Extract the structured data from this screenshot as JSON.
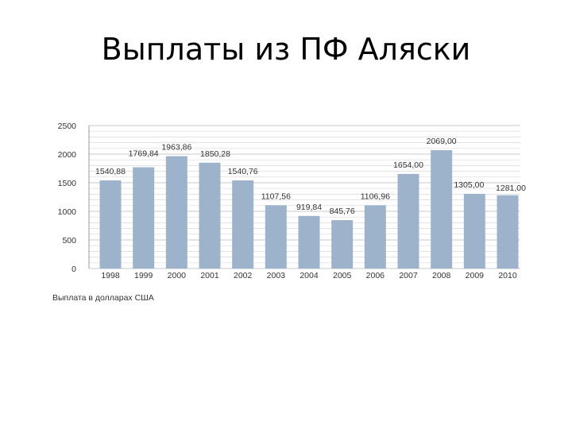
{
  "slide": {
    "title": "Выплаты из ПФ Аляски",
    "caption": "Выплата в долларах США"
  },
  "chart_data": {
    "type": "bar",
    "categories": [
      "1998",
      "1999",
      "2000",
      "2001",
      "2002",
      "2003",
      "2004",
      "2005",
      "2006",
      "2007",
      "2008",
      "2009",
      "2010"
    ],
    "values": [
      1540.88,
      1769.84,
      1963.86,
      1850.28,
      1540.76,
      1107.56,
      919.84,
      845.76,
      1106.96,
      1654.0,
      2069.0,
      1305.0,
      1281.0
    ],
    "value_labels": [
      "1540,88",
      "1769,84",
      "1963,86",
      "1850,28",
      "1540,76",
      "1107,56",
      "919,84",
      "845,76",
      "1106,96",
      "1654,00",
      "2069,00",
      "1305,00",
      "1281,00"
    ],
    "y_ticks": [
      "0",
      "500",
      "1000",
      "1500",
      "2000",
      "2500"
    ],
    "ylim": [
      0,
      2500
    ],
    "ylabel": "Выплата в долларах США",
    "grid": true,
    "bar_color": "#9db3cb",
    "grid_color": "#d9d9d9"
  }
}
